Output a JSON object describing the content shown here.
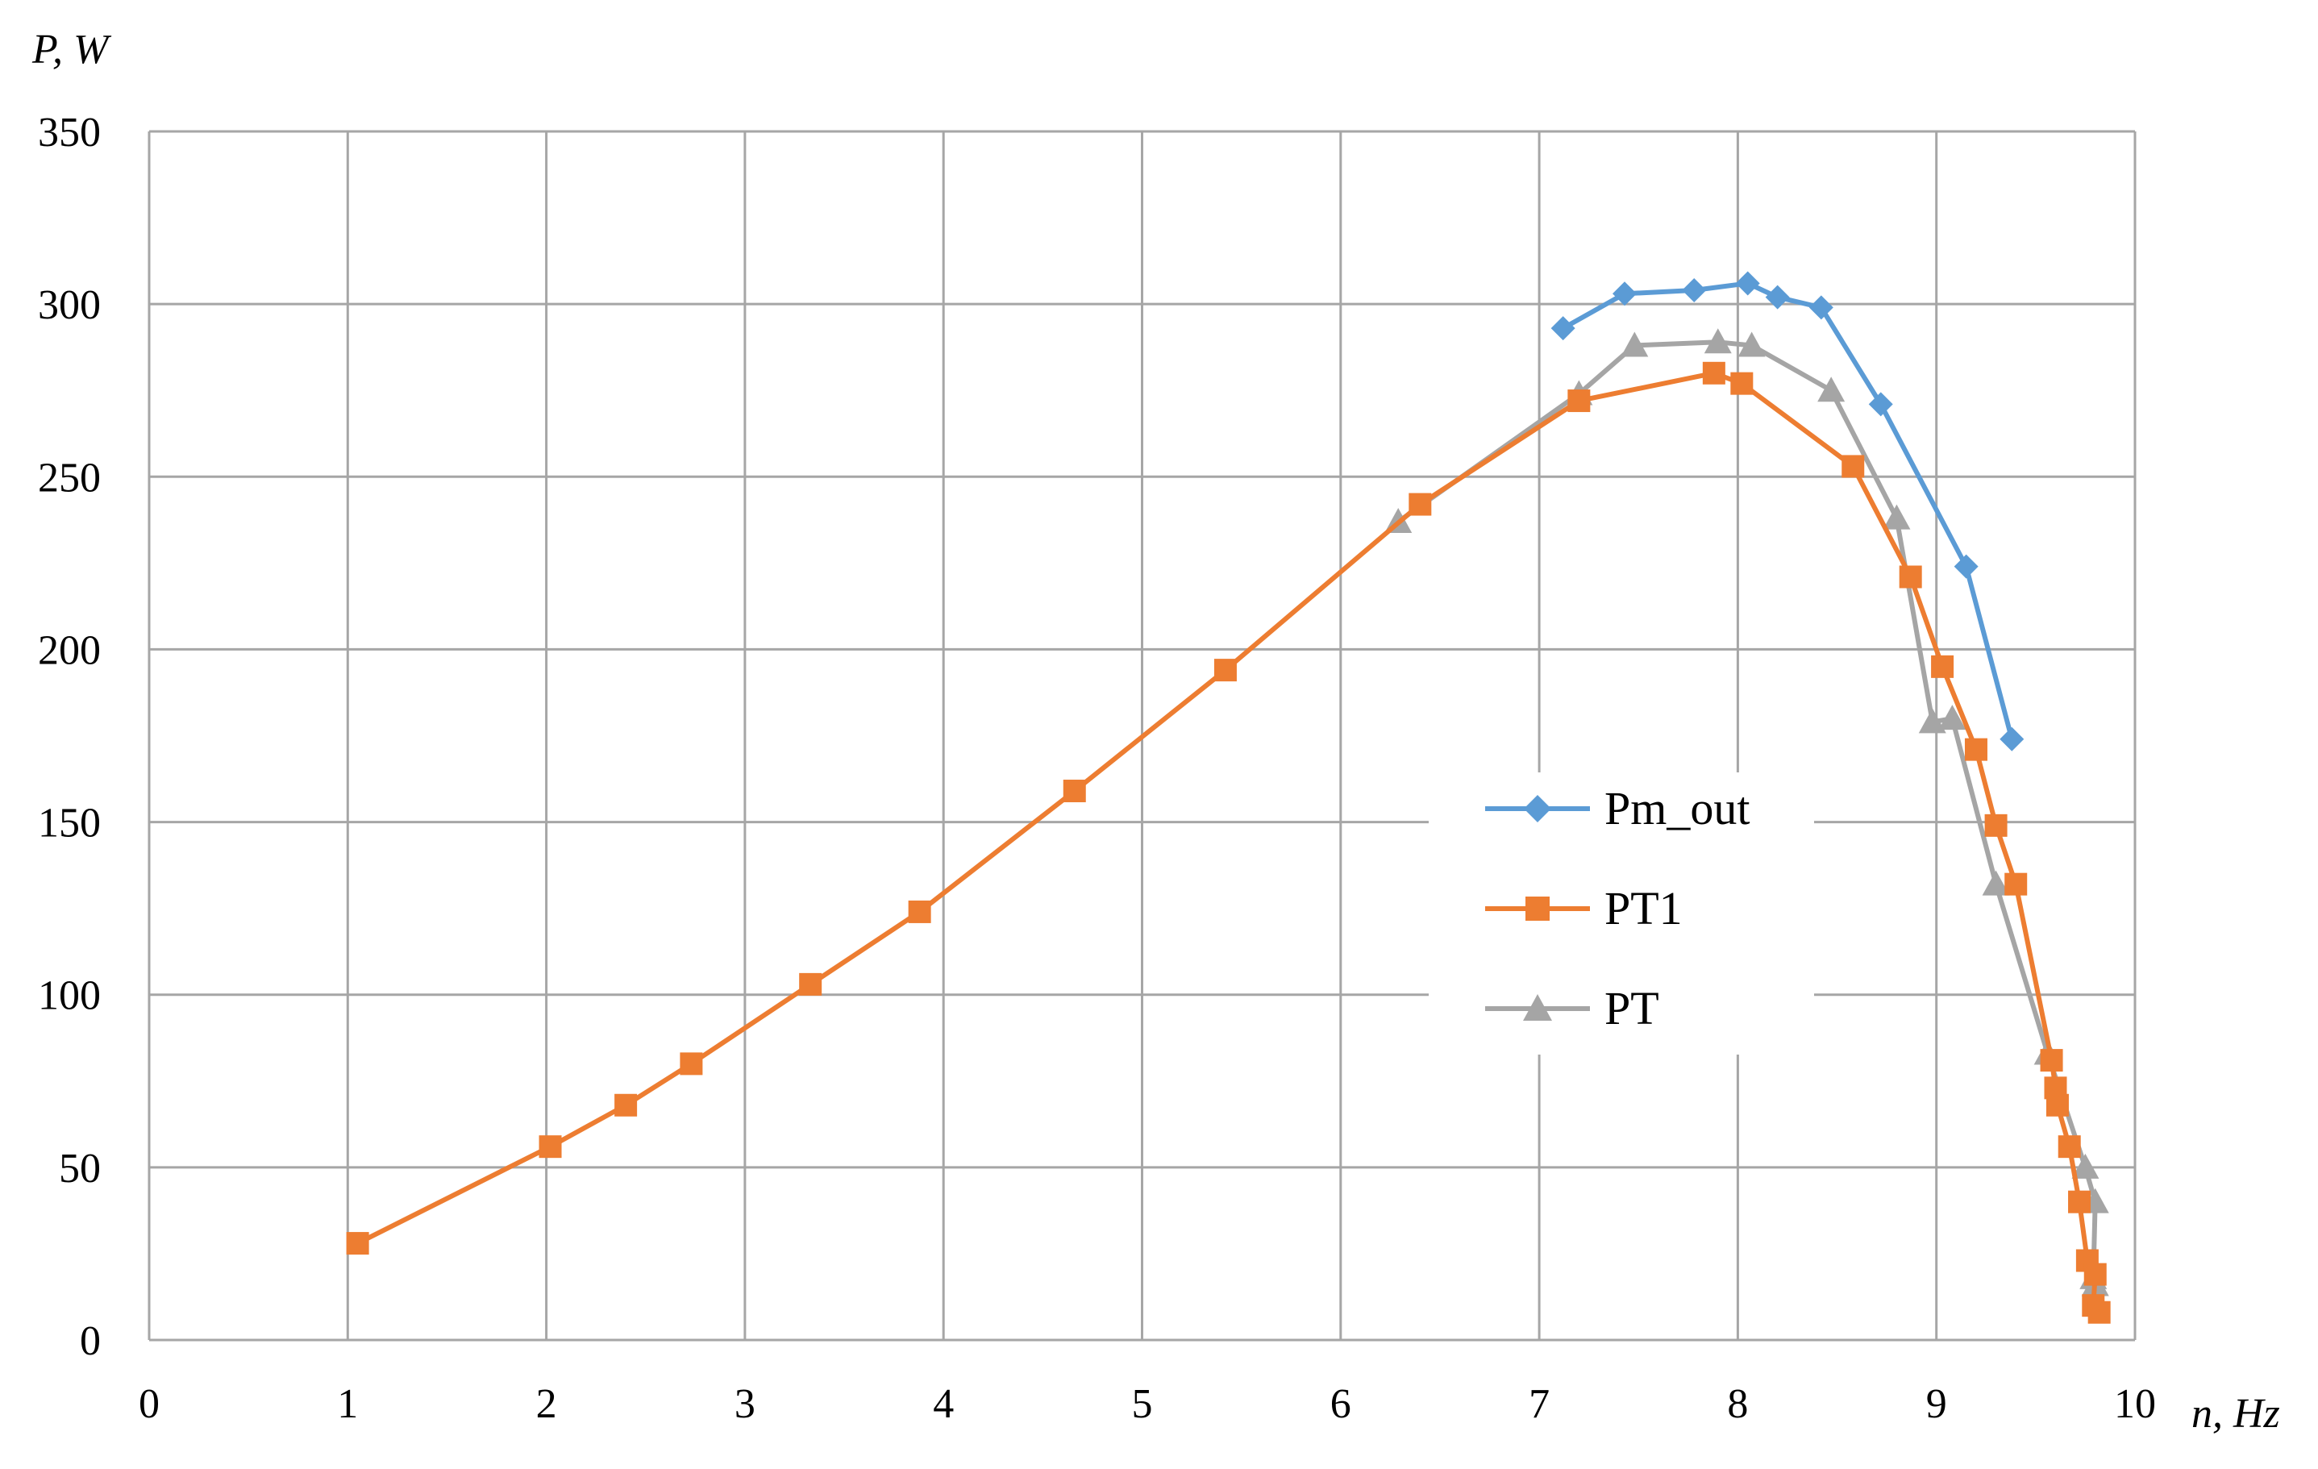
{
  "chart_data": {
    "type": "line",
    "title": "",
    "ylabel": "P, W",
    "xlabel": "n, Hz",
    "xlim": [
      0,
      10
    ],
    "ylim": [
      0,
      350
    ],
    "x_ticks": [
      "0",
      "1",
      "2",
      "3",
      "4",
      "5",
      "6",
      "7",
      "8",
      "9",
      "10"
    ],
    "y_ticks": [
      "0",
      "50",
      "100",
      "150",
      "200",
      "250",
      "300",
      "350"
    ],
    "grid": true,
    "legend_position": "center-right",
    "series": [
      {
        "name": "Pm_out",
        "color": "#5B9BD5",
        "marker": "diamond",
        "points": [
          [
            7.12,
            293
          ],
          [
            7.43,
            303
          ],
          [
            7.78,
            304
          ],
          [
            8.05,
            306
          ],
          [
            8.2,
            302
          ],
          [
            8.42,
            299
          ],
          [
            8.72,
            271
          ],
          [
            9.15,
            224
          ],
          [
            9.38,
            174
          ]
        ]
      },
      {
        "name": "PT1",
        "color": "#ED7D31",
        "marker": "square",
        "points": [
          [
            1.05,
            28
          ],
          [
            2.02,
            56
          ],
          [
            2.4,
            68
          ],
          [
            2.73,
            80
          ],
          [
            3.33,
            103
          ],
          [
            3.88,
            124
          ],
          [
            4.66,
            159
          ],
          [
            5.42,
            194
          ],
          [
            6.4,
            242
          ],
          [
            7.2,
            272
          ],
          [
            7.88,
            280
          ],
          [
            8.02,
            277
          ],
          [
            8.58,
            253
          ],
          [
            8.87,
            221
          ],
          [
            9.03,
            195
          ],
          [
            9.2,
            171
          ],
          [
            9.3,
            149
          ],
          [
            9.4,
            132
          ],
          [
            9.58,
            81
          ],
          [
            9.6,
            73
          ],
          [
            9.61,
            68
          ],
          [
            9.67,
            56
          ],
          [
            9.72,
            40
          ],
          [
            9.76,
            23
          ],
          [
            9.8,
            19
          ],
          [
            9.79,
            10
          ],
          [
            9.82,
            8
          ]
        ]
      },
      {
        "name": "PT",
        "color": "#A5A5A5",
        "marker": "triangle",
        "points": [
          [
            6.29,
            237
          ],
          [
            7.2,
            274
          ],
          [
            7.48,
            288
          ],
          [
            7.9,
            289
          ],
          [
            8.07,
            288
          ],
          [
            8.47,
            275
          ],
          [
            8.8,
            238
          ],
          [
            8.98,
            179
          ],
          [
            9.08,
            180
          ],
          [
            9.3,
            132
          ],
          [
            9.56,
            83
          ],
          [
            9.75,
            50
          ],
          [
            9.8,
            40
          ],
          [
            9.79,
            18
          ],
          [
            9.8,
            16
          ]
        ]
      }
    ]
  }
}
